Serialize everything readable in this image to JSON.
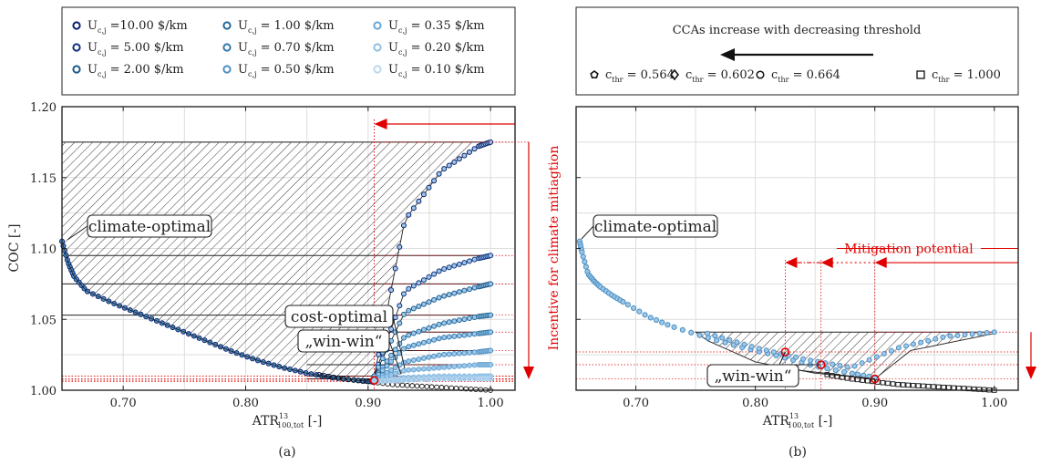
{
  "figure": {
    "caption_a": "(a)",
    "caption_b": "(b)"
  },
  "legend_a": {
    "entries": [
      {
        "label": "U_c,j =10.00 $/km",
        "color": "#0a1f6e"
      },
      {
        "label": "U_c,j = 5.00 $/km",
        "color": "#10307f"
      },
      {
        "label": "U_c,j = 2.00 $/km",
        "color": "#1b5a8c"
      },
      {
        "label": "U_c,j = 1.00 $/km",
        "color": "#23689a"
      },
      {
        "label": "U_c,j = 0.70 $/km",
        "color": "#3279ad"
      },
      {
        "label": "U_c,j = 0.50 $/km",
        "color": "#4b8fc2"
      },
      {
        "label": "U_c,j = 0.35 $/km",
        "color": "#6aa7d6"
      },
      {
        "label": "U_c,j = 0.20 $/km",
        "color": "#8fc0e4"
      },
      {
        "label": "U_c,j = 0.10 $/km",
        "color": "#bcd9ef"
      }
    ]
  },
  "legend_b": {
    "title": "CCAs increase with decreasing threshold",
    "entries": [
      {
        "marker": "pentagon",
        "label": "c_thr = 0.564"
      },
      {
        "marker": "diamond",
        "label": "c_thr = 0.602"
      },
      {
        "marker": "circle",
        "label": "c_thr = 0.664"
      },
      {
        "marker": "square",
        "label": "c_thr = 1.000"
      }
    ]
  },
  "annotations_a": {
    "climate_optimal": "climate-optimal",
    "cost_optimal": "cost-optimal",
    "win_win": "„win-win“",
    "incentive": "Incentive for climate mitiagtion"
  },
  "annotations_b": {
    "climate_optimal": "climate-optimal",
    "win_win": "„win-win“",
    "mitigation": "Mitigation potential"
  },
  "chart_data": [
    {
      "type": "scatter",
      "panel": "a",
      "xlabel": "ATR^{13}_{100,tot} [-]",
      "ylabel": "COC [-]",
      "xlim": [
        0.65,
        1.02
      ],
      "ylim": [
        1.0,
        1.2
      ],
      "xticks": [
        "0.70",
        "0.80",
        "0.90",
        "1.00"
      ],
      "yticks": [
        "1.00",
        "1.05",
        "1.10",
        "1.15",
        "1.20"
      ],
      "grid": true,
      "legend": "top",
      "pareto_front": {
        "x": [
          0.65,
          0.655,
          0.66,
          0.67,
          0.69,
          0.71,
          0.73,
          0.75,
          0.77,
          0.79,
          0.81,
          0.83,
          0.85,
          0.87,
          0.89,
          0.905
        ],
        "y": [
          1.105,
          1.09,
          1.08,
          1.07,
          1.062,
          1.055,
          1.048,
          1.041,
          1.034,
          1.027,
          1.021,
          1.016,
          1.012,
          1.009,
          1.007,
          1.006
        ]
      },
      "series": [
        {
          "name": "U_c,j =10.00 $/km",
          "cap_y": 1.175,
          "x": [
            0.905,
            0.93,
            0.96,
            0.99,
            1.0
          ],
          "y": [
            1.01,
            1.12,
            1.155,
            1.172,
            1.175
          ]
        },
        {
          "name": "U_c,j = 5.00 $/km",
          "cap_y": 1.095,
          "x": [
            0.905,
            0.93,
            0.96,
            0.99,
            1.0
          ],
          "y": [
            1.01,
            1.07,
            1.085,
            1.093,
            1.095
          ]
        },
        {
          "name": "U_c,j = 2.00 $/km",
          "cap_y": 1.075,
          "x": [
            0.905,
            0.93,
            0.96,
            0.99,
            1.0
          ],
          "y": [
            1.01,
            1.055,
            1.066,
            1.073,
            1.075
          ]
        },
        {
          "name": "U_c,j = 1.00 $/km",
          "cap_y": 1.053,
          "x": [
            0.905,
            0.93,
            0.96,
            0.99,
            1.0
          ],
          "y": [
            1.008,
            1.038,
            1.047,
            1.052,
            1.053
          ]
        },
        {
          "name": "U_c,j = 0.70 $/km",
          "cap_y": 1.041,
          "x": [
            0.905,
            0.93,
            0.96,
            0.99,
            1.0
          ],
          "y": [
            1.008,
            1.03,
            1.037,
            1.04,
            1.041
          ]
        },
        {
          "name": "U_c,j = 0.50 $/km",
          "cap_y": 1.028,
          "x": [
            0.905,
            0.93,
            0.96,
            0.99,
            1.0
          ],
          "y": [
            1.007,
            1.02,
            1.025,
            1.027,
            1.028
          ]
        },
        {
          "name": "U_c,j = 0.35 $/km",
          "cap_y": 1.018,
          "x": [
            0.905,
            0.93,
            0.96,
            0.99,
            1.0
          ],
          "y": [
            1.007,
            1.014,
            1.016,
            1.018,
            1.018
          ]
        },
        {
          "name": "U_c,j = 0.20 $/km",
          "cap_y": 1.01,
          "x": [
            0.905,
            0.93,
            0.96,
            0.99,
            1.0
          ],
          "y": [
            1.006,
            1.009,
            1.01,
            1.01,
            1.01
          ]
        },
        {
          "name": "U_c,j = 0.10 $/km",
          "cap_y": 1.008,
          "x": [
            0.905,
            0.93,
            0.96,
            0.99,
            1.0
          ],
          "y": [
            1.006,
            1.007,
            1.008,
            1.008,
            1.008
          ]
        }
      ],
      "cost_branch": {
        "x": [
          0.86,
          0.88,
          0.9,
          0.92,
          0.94,
          0.96,
          0.98,
          1.0
        ],
        "y": [
          1.011,
          1.008,
          1.006,
          1.004,
          1.003,
          1.002,
          1.001,
          1.0
        ]
      },
      "win_win_point": {
        "x": 0.905,
        "y": 1.007
      },
      "incentive_arrow": {
        "x_from": 1.0,
        "x_to": 0.905,
        "y": 1.187
      }
    },
    {
      "type": "scatter",
      "panel": "b",
      "xlabel": "ATR^{13}_{100,tot} [-]",
      "ylabel": "",
      "xlim": [
        0.65,
        1.02
      ],
      "ylim": [
        1.0,
        1.2
      ],
      "xticks": [
        "0.70",
        "0.80",
        "0.90",
        "1.00"
      ],
      "grid": true,
      "legend": "top",
      "front": {
        "x": [
          0.653,
          0.655,
          0.66,
          0.665,
          0.67,
          0.68,
          0.69,
          0.71,
          0.73,
          0.76,
          0.79,
          0.82,
          0.85,
          0.88,
          0.9
        ],
        "y": [
          1.105,
          1.097,
          1.082,
          1.077,
          1.073,
          1.067,
          1.062,
          1.052,
          1.045,
          1.037,
          1.03,
          1.024,
          1.017,
          1.012,
          1.009
        ]
      },
      "cost_branch": {
        "x": [
          0.86,
          0.88,
          0.9,
          0.92,
          0.94,
          0.96,
          0.98,
          1.0
        ],
        "y": [
          1.011,
          1.008,
          1.006,
          1.004,
          1.003,
          1.002,
          1.001,
          1.0
        ]
      },
      "win_win_points": [
        {
          "x": 0.825,
          "y": 1.027
        },
        {
          "x": 0.855,
          "y": 1.018
        },
        {
          "x": 0.9,
          "y": 1.008
        }
      ],
      "mitigation_arrow": {
        "x_from": 1.0,
        "x_to": 0.825,
        "y": 1.09
      },
      "cap_y": 1.041
    }
  ]
}
